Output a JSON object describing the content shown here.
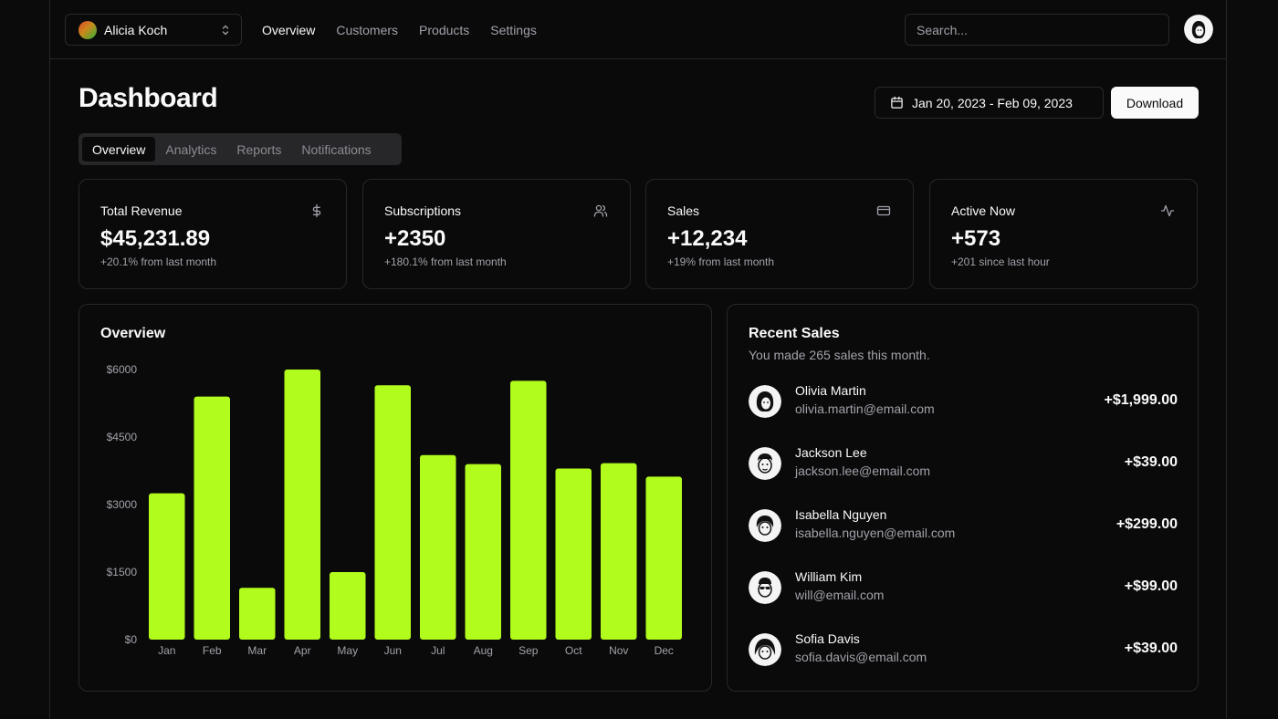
{
  "team": {
    "name": "Alicia Koch"
  },
  "nav": [
    {
      "label": "Overview"
    },
    {
      "label": "Customers"
    },
    {
      "label": "Products"
    },
    {
      "label": "Settings"
    }
  ],
  "search": {
    "placeholder": "Search..."
  },
  "header": {
    "title": "Dashboard",
    "date_range": "Jan 20, 2023 - Feb 09, 2023",
    "download_label": "Download"
  },
  "tabs": [
    {
      "label": "Overview"
    },
    {
      "label": "Analytics"
    },
    {
      "label": "Reports"
    },
    {
      "label": "Notifications"
    }
  ],
  "stats": [
    {
      "label": "Total Revenue",
      "value": "$45,231.89",
      "sub": "+20.1% from last month",
      "icon": "dollar-icon"
    },
    {
      "label": "Subscriptions",
      "value": "+2350",
      "sub": "+180.1% from last month",
      "icon": "users-icon"
    },
    {
      "label": "Sales",
      "value": "+12,234",
      "sub": "+19% from last month",
      "icon": "credit-card-icon"
    },
    {
      "label": "Active Now",
      "value": "+573",
      "sub": "+201 since last hour",
      "icon": "activity-icon"
    }
  ],
  "overview": {
    "title": "Overview"
  },
  "chart_data": {
    "type": "bar",
    "categories": [
      "Jan",
      "Feb",
      "Mar",
      "Apr",
      "May",
      "Jun",
      "Jul",
      "Aug",
      "Sep",
      "Oct",
      "Nov",
      "Dec"
    ],
    "values": [
      3250,
      5400,
      1150,
      6000,
      1500,
      5650,
      4100,
      3900,
      5750,
      3800,
      3920,
      3620
    ],
    "ylim": [
      0,
      6000
    ],
    "yticks": [
      0,
      1500,
      3000,
      4500,
      6000
    ],
    "ytick_labels": [
      "$0",
      "$1500",
      "$3000",
      "$4500",
      "$6000"
    ],
    "title": "Overview",
    "xlabel": "",
    "ylabel": "",
    "grid": false,
    "bar_color": "#b2fc1d"
  },
  "recent_sales": {
    "title": "Recent Sales",
    "subtitle": "You made 265 sales this month.",
    "items": [
      {
        "name": "Olivia Martin",
        "email": "olivia.martin@email.com",
        "amount": "+$1,999.00"
      },
      {
        "name": "Jackson Lee",
        "email": "jackson.lee@email.com",
        "amount": "+$39.00"
      },
      {
        "name": "Isabella Nguyen",
        "email": "isabella.nguyen@email.com",
        "amount": "+$299.00"
      },
      {
        "name": "William Kim",
        "email": "will@email.com",
        "amount": "+$99.00"
      },
      {
        "name": "Sofia Davis",
        "email": "sofia.davis@email.com",
        "amount": "+$39.00"
      }
    ]
  },
  "colors": {
    "accent": "#b2fc1d",
    "background": "#0a0a0a",
    "border": "#27272a",
    "muted_text": "#a1a1aa"
  }
}
